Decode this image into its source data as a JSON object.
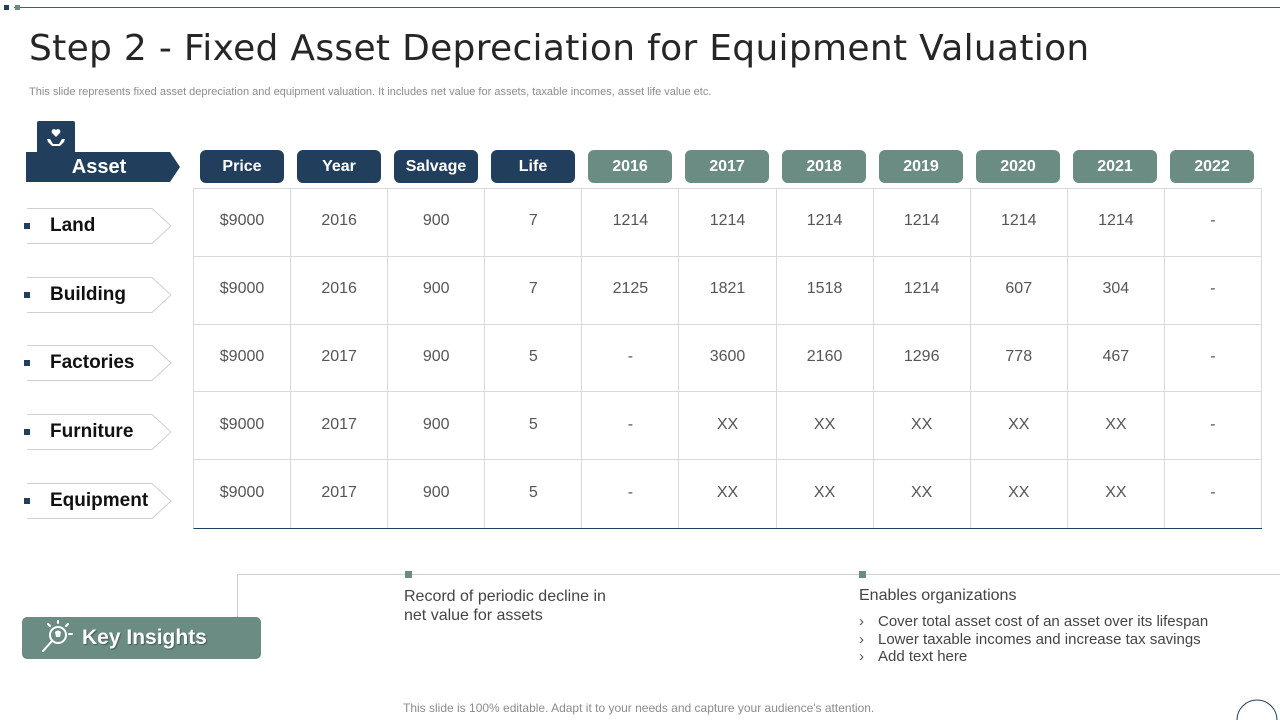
{
  "slide": {
    "title": "Step 2 - Fixed Asset Depreciation for Equipment Valuation",
    "subtitle": "This slide represents fixed asset depreciation and equipment valuation. It includes net value for assets, taxable incomes, asset life value etc.",
    "footer": "This slide is 100% editable. Adapt it to your needs and capture your audience's attention."
  },
  "colors": {
    "navy": "#213f5c",
    "sage": "#6a8c82"
  },
  "icons": {
    "asset": "hand-holding-icon",
    "insights": "lightbulb-magnifier-icon"
  },
  "table": {
    "row_header": "Asset",
    "columns": [
      "Price",
      "Year",
      "Salvage",
      "Life",
      "2016",
      "2017",
      "2018",
      "2019",
      "2020",
      "2021",
      "2022"
    ],
    "rows": [
      {
        "asset": "Land",
        "cells": [
          "$9000",
          "2016",
          "900",
          "7",
          "1214",
          "1214",
          "1214",
          "1214",
          "1214",
          "1214",
          "-"
        ]
      },
      {
        "asset": "Building",
        "cells": [
          "$9000",
          "2016",
          "900",
          "7",
          "2125",
          "1821",
          "1518",
          "1214",
          "607",
          "304",
          "-"
        ]
      },
      {
        "asset": "Factories",
        "cells": [
          "$9000",
          "2017",
          "900",
          "5",
          "-",
          "3600",
          "2160",
          "1296",
          "778",
          "467",
          "-"
        ]
      },
      {
        "asset": "Furniture",
        "cells": [
          "$9000",
          "2017",
          "900",
          "5",
          "-",
          "XX",
          "XX",
          "XX",
          "XX",
          "XX",
          "-"
        ]
      },
      {
        "asset": "Equipment",
        "cells": [
          "$9000",
          "2017",
          "900",
          "5",
          "-",
          "XX",
          "XX",
          "XX",
          "XX",
          "XX",
          "-"
        ]
      }
    ]
  },
  "insights": {
    "label": "Key Insights",
    "point1": "Record of periodic decline in net value for assets",
    "point2_heading": "Enables  organizations",
    "point2_items": [
      "Cover total asset cost of an asset over its lifespan",
      "Lower taxable incomes and increase tax savings",
      "Add text here"
    ]
  }
}
